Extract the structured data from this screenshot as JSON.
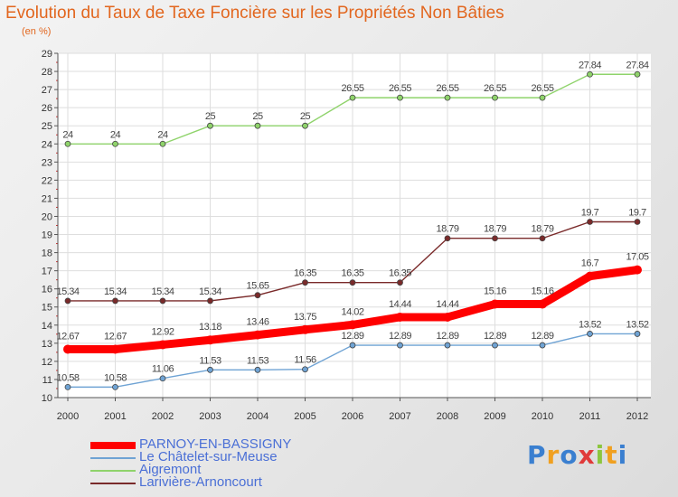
{
  "chart_data": {
    "type": "line",
    "title": "Evolution du Taux de Taxe Foncière sur les Propriétés Non Bâties",
    "subtitle": "(en %)",
    "x": [
      "2000",
      "2001",
      "2002",
      "2003",
      "2004",
      "2005",
      "2006",
      "2007",
      "2008",
      "2009",
      "2010",
      "2011",
      "2012"
    ],
    "ylim": [
      10,
      29
    ],
    "yticks": [
      "10",
      "11",
      "12",
      "13",
      "14",
      "15",
      "16",
      "17",
      "18",
      "19",
      "20",
      "21",
      "22",
      "23",
      "24",
      "25",
      "26",
      "27",
      "28",
      "29"
    ],
    "grid": true,
    "legend_position": "bottom-left",
    "series": [
      {
        "name": "PARNOY-EN-BASSIGNY",
        "color": "#ff0000",
        "values": [
          12.67,
          12.67,
          12.92,
          13.18,
          13.46,
          13.75,
          14.02,
          14.44,
          14.44,
          15.16,
          15.16,
          16.7,
          17.05
        ],
        "labels": [
          "12.67",
          "12.67",
          "12.92",
          "13.18",
          "13.46",
          "13.75",
          "14.02",
          "14.44",
          "14.44",
          "15.16",
          "15.16",
          "16.7",
          "17.05"
        ]
      },
      {
        "name": "Le Châtelet-sur-Meuse",
        "color": "#6fa3d4",
        "values": [
          10.58,
          10.58,
          11.06,
          11.53,
          11.53,
          11.56,
          12.89,
          12.89,
          12.89,
          12.89,
          12.89,
          13.52,
          13.52
        ],
        "labels": [
          "10.58",
          "10.58",
          "11.06",
          "11.53",
          "11.53",
          "11.56",
          "12.89",
          "12.89",
          "12.89",
          "12.89",
          "12.89",
          "13.52",
          "13.52"
        ]
      },
      {
        "name": "Aigremont",
        "color": "#8fd36b",
        "values": [
          24,
          24,
          24,
          25,
          25,
          25,
          26.55,
          26.55,
          26.55,
          26.55,
          26.55,
          27.84,
          27.84
        ],
        "labels": [
          "24",
          "24",
          "24",
          "25",
          "25",
          "25",
          "26.55",
          "26.55",
          "26.55",
          "26.55",
          "26.55",
          "27.84",
          "27.84"
        ]
      },
      {
        "name": "Larivière-Arnoncourt",
        "color": "#7a2a2a",
        "values": [
          15.34,
          15.34,
          15.34,
          15.34,
          15.65,
          16.35,
          16.35,
          16.35,
          18.79,
          18.79,
          18.79,
          19.7,
          19.7
        ],
        "labels": [
          "15.34",
          "15.34",
          "15.34",
          "15.34",
          "15.65",
          "16.35",
          "16.35",
          "16.35",
          "18.79",
          "18.79",
          "18.79",
          "19.7",
          "19.7"
        ]
      }
    ]
  },
  "logo": {
    "text": "Proxiti"
  }
}
